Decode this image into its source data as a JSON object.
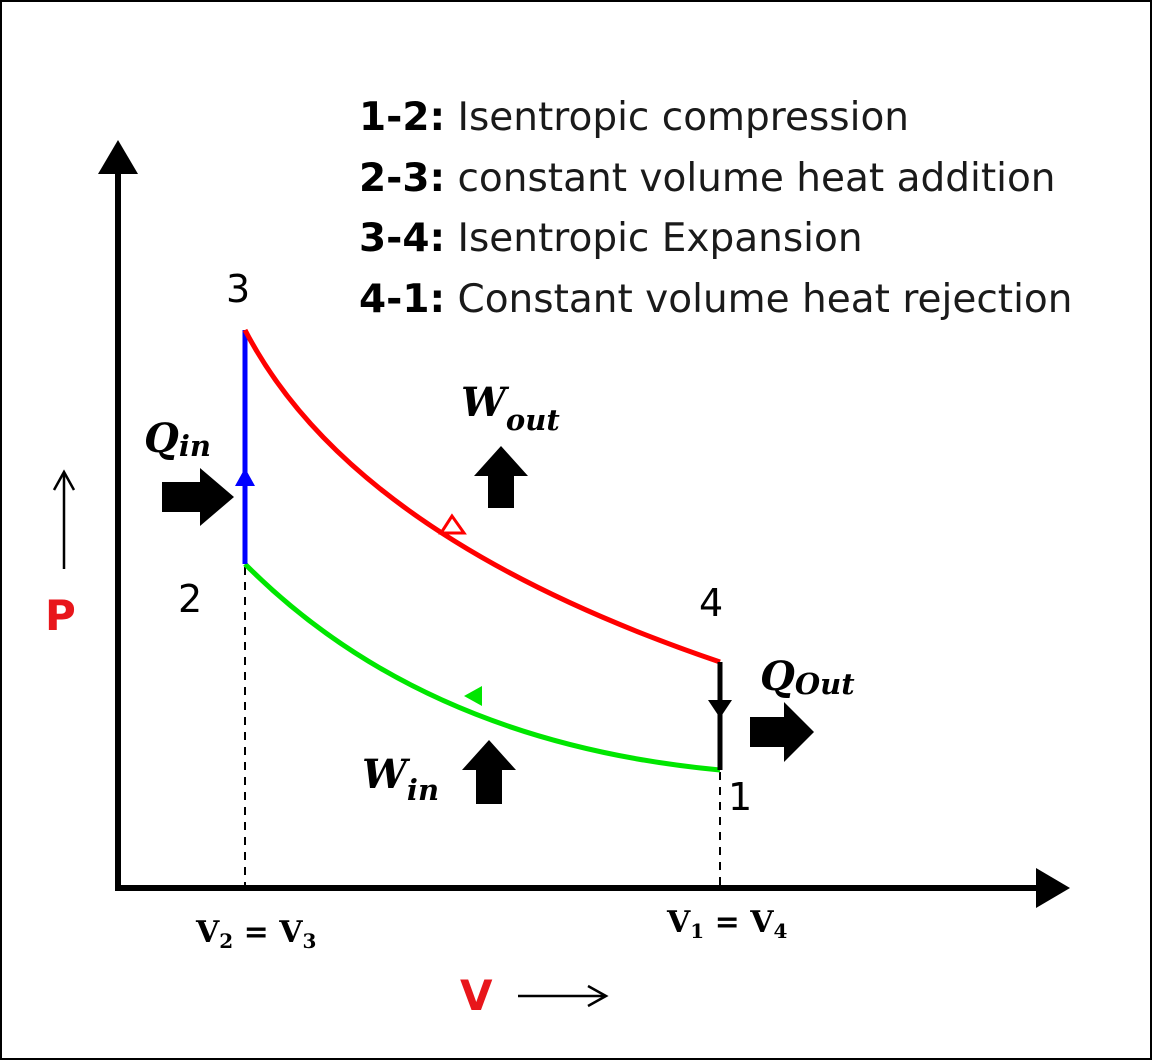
{
  "legend": [
    {
      "key": "1-2:",
      "text": " Isentropic compression"
    },
    {
      "key": "2-3:",
      "text": " constant volume heat addition"
    },
    {
      "key": "3-4:",
      "text": " Isentropic Expansion"
    },
    {
      "key": "4-1:",
      "text": " Constant volume heat rejection"
    }
  ],
  "points": {
    "p1": "1",
    "p2": "2",
    "p3": "3",
    "p4": "4"
  },
  "heat": {
    "in_base": "Q",
    "in_sub": "in",
    "out_base": "Q",
    "out_sub": "Out"
  },
  "work": {
    "out_base": "W",
    "out_sub": "out",
    "in_base": "W",
    "in_sub": "in"
  },
  "axes": {
    "y_name": "P",
    "x_name": "V",
    "v_left": {
      "a": "V",
      "a_sub": "2",
      "eq": " = ",
      "b": "V",
      "b_sub": "3"
    },
    "v_right": {
      "a": "V",
      "a_sub": "1",
      "eq": " = ",
      "b": "V",
      "b_sub": "4"
    }
  },
  "colors": {
    "compression": "#00e600",
    "heat_addition": "#0000ff",
    "expansion": "#ff0000",
    "heat_rejection": "#000000",
    "axis_name": "#e8161b"
  }
}
